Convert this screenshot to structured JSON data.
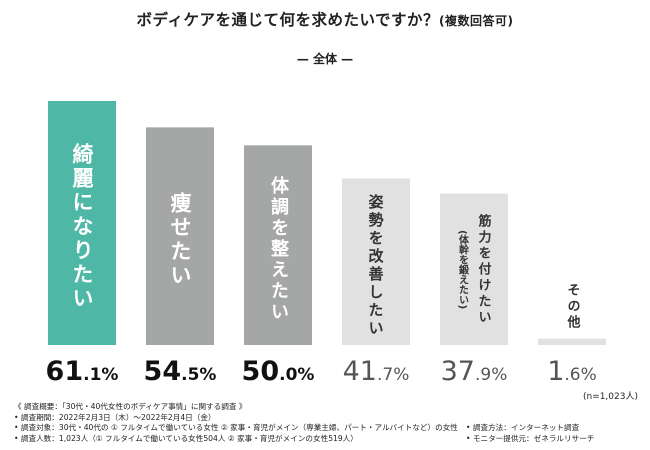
{
  "title": {
    "main": "ボディケアを通じて何を求めたいですか？",
    "sub": "(複数回答可)"
  },
  "subtitle": "— 全体 —",
  "chart_data": {
    "type": "bar",
    "title": "ボディケアを通じて何を求めたいですか？(複数回答可)",
    "subtitle": "— 全体 —",
    "unit": "%",
    "ylim": [
      0,
      61.1
    ],
    "categories": [
      "綺麗になりたい",
      "痩せたい",
      "体調を整えたい",
      "姿勢を改善したい",
      "筋力を付けたい",
      "その他"
    ],
    "category_notes": [
      "",
      "",
      "",
      "",
      "(体幹を鍛えたい)",
      ""
    ],
    "values": [
      61.1,
      54.5,
      50.0,
      41.7,
      37.9,
      1.6
    ],
    "value_labels": [
      {
        "int": "61",
        "dec": ".1%"
      },
      {
        "int": "54",
        "dec": ".5%"
      },
      {
        "int": "50",
        "dec": ".0%"
      },
      {
        "int": "41",
        "dec": ".7%"
      },
      {
        "int": "37",
        "dec": ".9%"
      },
      {
        "int": "1",
        "dec": ".6%"
      }
    ],
    "colors": [
      "#4fb7a5",
      "#a5a6a6",
      "#a5a6a6",
      "#e1e1e1",
      "#e1e1e1",
      "#e1e1e1"
    ],
    "label_colors": [
      "#ffffff",
      "#ffffff",
      "#ffffff",
      "#333333",
      "#333333",
      "#333333"
    ],
    "value_styles": [
      "dark",
      "dark",
      "dark",
      "light",
      "light",
      "light"
    ]
  },
  "respondents": "(n=1,023人)",
  "footnote": {
    "line1": "《 調査概要：「30代・40代女性のボディケア事情」に関する調査 》",
    "line2": "• 調査期間：2022年2月3日（木）～2022年2月4日（金）",
    "line3": "• 調査対象：30代・40代の ① フルタイムで働いている女性 ② 家事・育児がメイン（専業主婦、パート・アルバイトなど）の女性",
    "line4": "• 調査人数：1,023人（① フルタイムで働いている女性504人 ② 家事・育児がメインの女性519人）",
    "method": "• 調査方法：インターネット調査",
    "provider": "• モニター提供元：ゼネラルリサーチ"
  }
}
